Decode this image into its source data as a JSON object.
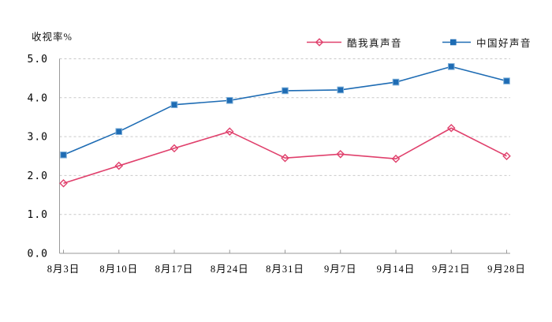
{
  "chart_data": {
    "type": "line",
    "title": "收视率%",
    "categories": [
      "8月3日",
      "8月10日",
      "8月17日",
      "8月24日",
      "8月31日",
      "9月7日",
      "9月14日",
      "9月21日",
      "9月28日"
    ],
    "series": [
      {
        "name": "酷我真声音",
        "marker": "diamond-open",
        "color": "#e0406c",
        "values": [
          1.8,
          2.25,
          2.7,
          3.13,
          2.45,
          2.55,
          2.43,
          3.22,
          2.5
        ]
      },
      {
        "name": "中国好声音",
        "marker": "square-filled",
        "color": "#1e6cb4",
        "values": [
          2.53,
          3.13,
          3.82,
          3.93,
          4.18,
          4.2,
          4.4,
          4.8,
          4.43
        ]
      }
    ],
    "ylim": [
      0,
      5
    ],
    "ytick_labels": [
      "0.0",
      "1.0",
      "2.0",
      "3.0",
      "4.0",
      "5.0"
    ],
    "xlabel": "",
    "ylabel": "收视率%",
    "grid": "horizontal-dashed",
    "legend_position": "top-right"
  },
  "colors": {
    "background": "#ffffff",
    "grid": "#c9c9c9",
    "axis": "#9a9a9a",
    "text": "#000000",
    "marker_halo": "#7fb0d9"
  }
}
